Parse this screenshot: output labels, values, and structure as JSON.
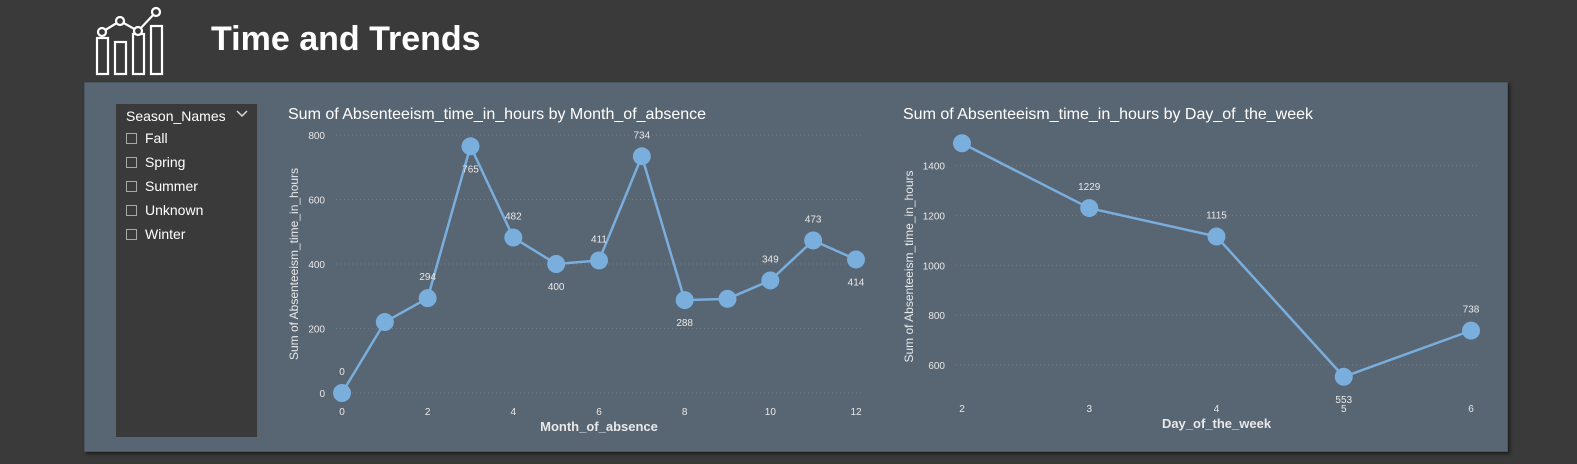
{
  "header": {
    "title": "Time and Trends",
    "logo_icon": "line-chart-icon"
  },
  "slicer": {
    "title": "Season_Names",
    "items": [
      {
        "label": "Fall",
        "checked": false
      },
      {
        "label": "Spring",
        "checked": false
      },
      {
        "label": "Summer",
        "checked": false
      },
      {
        "label": "Unknown",
        "checked": false
      },
      {
        "label": "Winter",
        "checked": false
      }
    ]
  },
  "colors": {
    "background": "#3a3a3a",
    "panel": "#586573",
    "line": "#7aaedc",
    "text": "#ffffff"
  },
  "chart_data": [
    {
      "type": "line",
      "title": "Sum of Absenteeism_time_in_hours by Month_of_absence",
      "xlabel": "Month_of_absence",
      "ylabel": "Sum of Absenteeism_time_in_hours",
      "x": [
        0,
        1,
        2,
        3,
        4,
        5,
        6,
        7,
        8,
        9,
        10,
        11,
        12
      ],
      "y": [
        0,
        220,
        294,
        765,
        482,
        400,
        411,
        734,
        288,
        292,
        349,
        473,
        414
      ],
      "data_labels": [
        "0",
        "",
        "294",
        "765",
        "482",
        "400",
        "411",
        "734",
        "288",
        "",
        "349",
        "473",
        "414"
      ],
      "xticks": [
        0,
        2,
        4,
        6,
        8,
        10,
        12
      ],
      "yticks": [
        0,
        200,
        400,
        600,
        800
      ],
      "ylim": [
        0,
        800
      ],
      "grid": true
    },
    {
      "type": "line",
      "title": "Sum of Absenteeism_time_in_hours by Day_of_the_week",
      "xlabel": "Day_of_the_week",
      "ylabel": "Sum of Absenteeism_time_in_hours",
      "x": [
        2,
        3,
        4,
        5,
        6
      ],
      "y": [
        1489,
        1229,
        1115,
        553,
        738
      ],
      "data_labels": [
        "",
        "1229",
        "1115",
        "553",
        "738"
      ],
      "xticks": [
        2,
        3,
        4,
        5,
        6
      ],
      "yticks": [
        600,
        800,
        1000,
        1200,
        1400
      ],
      "ylim": [
        500,
        1490
      ],
      "grid": true
    }
  ]
}
